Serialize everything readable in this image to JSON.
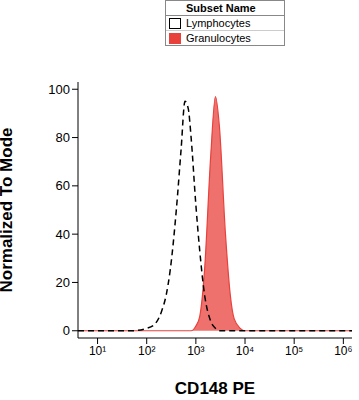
{
  "chart_data": {
    "type": "area",
    "x_label": "CD148 PE",
    "y_label": "Normalized To Mode",
    "legend_title": "Subset Name",
    "x": [
      4,
      10,
      50,
      100,
      150,
      200,
      250,
      300,
      400,
      500,
      600,
      700,
      800,
      1000,
      1200,
      1500,
      2000,
      2500,
      3000,
      4000,
      5000,
      6000,
      8000,
      10000,
      100000,
      1500000
    ],
    "series": [
      {
        "name": "Lymphocytes",
        "color": "#000000",
        "line_style": "dashed",
        "values": [
          0,
          0,
          0,
          1,
          3,
          8,
          15,
          25,
          50,
          75,
          95,
          92,
          80,
          52,
          33,
          15,
          4,
          1,
          0,
          0,
          0,
          0,
          0,
          0,
          0,
          0
        ]
      },
      {
        "name": "Granulocytes",
        "color": "#e8413c",
        "line_style": "solid",
        "values": [
          0,
          0,
          0,
          0,
          0,
          0,
          0,
          0,
          0,
          0,
          0,
          0,
          0,
          2,
          6,
          25,
          72,
          97,
          85,
          40,
          15,
          5,
          1,
          0,
          0,
          0
        ]
      }
    ],
    "log": "x",
    "xlim": [
      4,
      1500000
    ],
    "xticks": [
      {
        "value": 10,
        "label": "10¹"
      },
      {
        "value": 100,
        "label": "10²"
      },
      {
        "value": 1000,
        "label": "10³"
      },
      {
        "value": 10000,
        "label": "10⁴"
      },
      {
        "value": 100000,
        "label": "10⁵"
      },
      {
        "value": 1000000,
        "label": "10⁶"
      }
    ],
    "ylim": [
      -3,
      103
    ],
    "yticks": [
      0,
      20,
      40,
      60,
      80,
      100
    ],
    "grid": false,
    "legend": "top"
  }
}
